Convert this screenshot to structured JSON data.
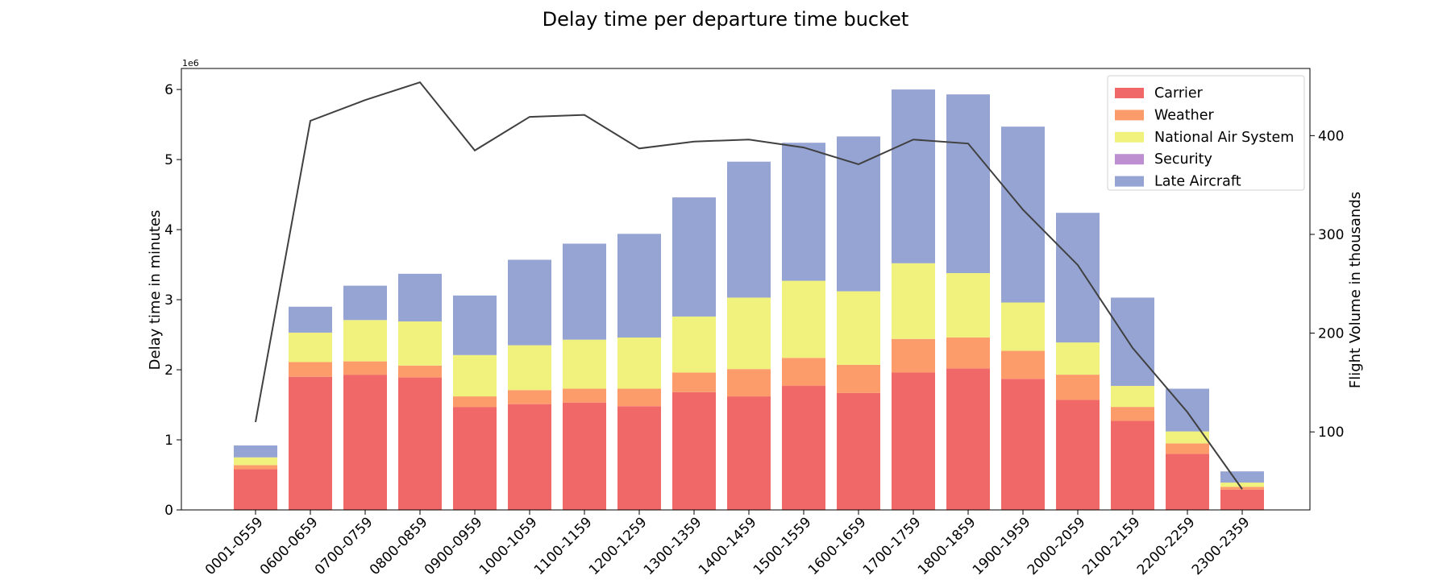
{
  "chart_data": {
    "type": "bar",
    "title": "Delay time per departure time bucket",
    "xlabel": "",
    "ylabel": "Delay time in minutes",
    "y2label": "Flight Volume in thousands",
    "y_offset_text": "1e6",
    "stacked": true,
    "categories": [
      "0001-0559",
      "0600-0659",
      "0700-0759",
      "0800-0859",
      "0900-0959",
      "1000-1059",
      "1100-1159",
      "1200-1259",
      "1300-1359",
      "1400-1459",
      "1500-1559",
      "1600-1659",
      "1700-1759",
      "1800-1859",
      "1900-1959",
      "2000-2059",
      "2100-2159",
      "2200-2259",
      "2300-2359"
    ],
    "ylim": [
      0,
      6.3
    ],
    "yticks": [
      "0",
      "1",
      "2",
      "3",
      "4",
      "5",
      "6"
    ],
    "y2lim": [
      21,
      468
    ],
    "y2ticks": [
      "100",
      "200",
      "300",
      "400"
    ],
    "legend_position": "top-right",
    "grid": false,
    "series": [
      {
        "name": "Carrier",
        "color": "#f16869",
        "values": [
          0.58,
          1.9,
          1.93,
          1.89,
          1.47,
          1.51,
          1.53,
          1.48,
          1.68,
          1.62,
          1.77,
          1.67,
          1.96,
          2.02,
          1.87,
          1.57,
          1.27,
          0.8,
          0.29
        ]
      },
      {
        "name": "Weather",
        "color": "#fc9c6b",
        "values": [
          0.06,
          0.21,
          0.19,
          0.17,
          0.15,
          0.2,
          0.2,
          0.25,
          0.28,
          0.39,
          0.4,
          0.4,
          0.48,
          0.44,
          0.4,
          0.36,
          0.2,
          0.15,
          0.04
        ]
      },
      {
        "name": "National Air System",
        "color": "#f1f17e",
        "values": [
          0.11,
          0.42,
          0.59,
          0.63,
          0.59,
          0.64,
          0.7,
          0.73,
          0.8,
          1.02,
          1.1,
          1.05,
          1.08,
          0.92,
          0.69,
          0.46,
          0.3,
          0.17,
          0.06
        ]
      },
      {
        "name": "Security",
        "color": "#bd8fd0",
        "values": [
          0.0,
          0.0,
          0.0,
          0.0,
          0.0,
          0.0,
          0.0,
          0.0,
          0.0,
          0.0,
          0.0,
          0.0,
          0.0,
          0.0,
          0.0,
          0.0,
          0.0,
          0.0,
          0.0
        ]
      },
      {
        "name": "Late Aircraft",
        "color": "#96a4d3",
        "values": [
          0.17,
          0.37,
          0.49,
          0.68,
          0.85,
          1.22,
          1.37,
          1.48,
          1.7,
          1.94,
          1.97,
          2.21,
          2.48,
          2.55,
          2.51,
          1.85,
          1.26,
          0.61,
          0.16
        ]
      }
    ],
    "line_series": {
      "color": "#404040",
      "axis": "right",
      "values": [
        110,
        415,
        436,
        454,
        385,
        419,
        421,
        387,
        394,
        396,
        388,
        371,
        396,
        392,
        325,
        269,
        185,
        120,
        42
      ]
    }
  }
}
